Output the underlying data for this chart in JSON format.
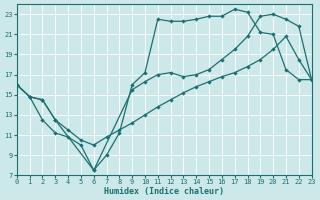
{
  "xlabel": "Humidex (Indice chaleur)",
  "xlim": [
    0,
    23
  ],
  "ylim": [
    7,
    24
  ],
  "yticks": [
    7,
    9,
    11,
    13,
    15,
    17,
    19,
    21,
    23
  ],
  "xticks": [
    0,
    1,
    2,
    3,
    4,
    5,
    6,
    7,
    8,
    9,
    10,
    11,
    12,
    13,
    14,
    15,
    16,
    17,
    18,
    19,
    20,
    21,
    22,
    23
  ],
  "bg_color": "#cde8e8",
  "line_color": "#1a7070",
  "grid_color": "#ffffff",
  "line1_x": [
    0,
    1,
    2,
    3,
    4,
    5,
    6,
    7,
    8,
    9,
    10,
    11,
    12,
    13,
    14,
    15,
    16,
    17,
    18,
    19,
    20,
    21,
    22,
    23
  ],
  "line1_y": [
    16.0,
    14.8,
    12.5,
    11.2,
    10.8,
    10.0,
    7.5,
    9.0,
    11.2,
    16.0,
    17.2,
    22.5,
    22.3,
    22.3,
    22.5,
    22.8,
    22.8,
    23.5,
    23.2,
    21.2,
    21.0,
    17.5,
    16.5,
    16.5
  ],
  "line2_x": [
    0,
    1,
    2,
    3,
    4,
    5,
    6,
    7,
    8,
    9,
    10,
    11,
    12,
    13,
    14,
    15,
    16,
    17,
    18,
    19,
    20,
    21,
    22,
    23
  ],
  "line2_y": [
    16.0,
    14.8,
    14.5,
    12.5,
    11.5,
    10.5,
    10.0,
    10.8,
    11.5,
    12.2,
    13.0,
    13.8,
    14.5,
    15.2,
    15.8,
    16.3,
    16.8,
    17.2,
    17.8,
    18.5,
    19.5,
    20.8,
    18.5,
    16.5
  ],
  "line3_x": [
    0,
    1,
    2,
    3,
    6,
    9,
    10,
    11,
    12,
    13,
    14,
    15,
    16,
    17,
    18,
    19,
    20,
    21,
    22,
    23
  ],
  "line3_y": [
    16.0,
    14.8,
    14.5,
    12.5,
    7.5,
    15.5,
    16.3,
    17.0,
    17.2,
    16.8,
    17.0,
    17.5,
    18.5,
    19.5,
    20.8,
    22.8,
    23.0,
    22.5,
    21.8,
    16.5
  ]
}
